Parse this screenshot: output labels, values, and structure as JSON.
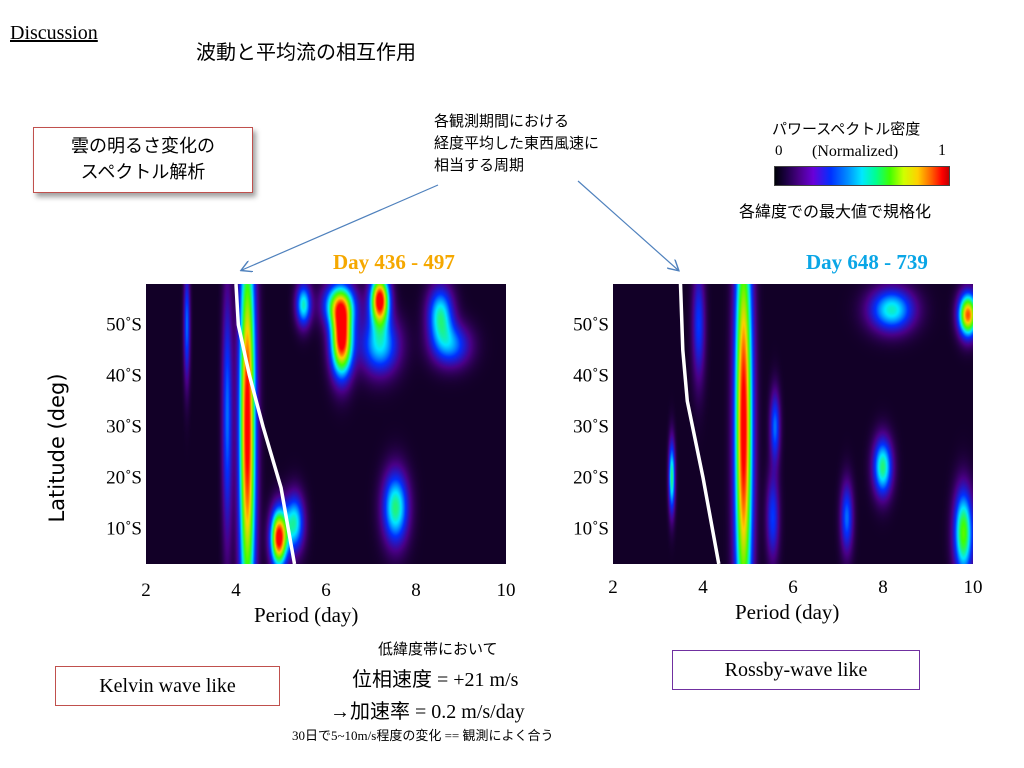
{
  "header": {
    "section": "Discussion",
    "title": "波動と平均流の相互作用"
  },
  "spectral_box": {
    "line1": "雲の明るさ変化の",
    "line2": "スペクトル解析"
  },
  "annotation": {
    "line1": "各観測期間における",
    "line2": "経度平均した東西風速に",
    "line3": "相当する周期"
  },
  "colorbar": {
    "title": "パワースペクトル密度",
    "min_label": "0",
    "max_label": "1",
    "unit_label": "(Normalized)",
    "caption": "各緯度での最大値で規格化",
    "colormap": [
      "#000008",
      "#4a0088",
      "#0030ff",
      "#00e8ff",
      "#40ff00",
      "#ffd000",
      "#ff0000"
    ]
  },
  "colors": {
    "day1": "#f5a800",
    "day2": "#0aa6e6",
    "kelvin_border": "#c0504d",
    "rossby_border": "#7030a0"
  },
  "chart_data": [
    {
      "type": "heatmap",
      "title": "Day 436 - 497",
      "xlabel": "Period (day)",
      "ylabel": "Latitude (deg)",
      "x_ticks": [
        "2",
        "4",
        "6",
        "8",
        "10"
      ],
      "y_ticks": [
        "10˚S",
        "20˚S",
        "30˚S",
        "40˚S",
        "50˚S"
      ],
      "xlim": [
        2,
        10
      ],
      "ylim": [
        3,
        58
      ],
      "blobs": [
        {
          "x": 4.25,
          "y": 30,
          "sx": 0.13,
          "sy": 28,
          "v": 1.0
        },
        {
          "x": 4.95,
          "y": 8,
          "sx": 0.13,
          "sy": 4,
          "v": 1.0
        },
        {
          "x": 5.3,
          "y": 11,
          "sx": 0.15,
          "sy": 4,
          "v": 0.5
        },
        {
          "x": 6.35,
          "y": 47,
          "sx": 0.17,
          "sy": 5,
          "v": 1.0
        },
        {
          "x": 6.3,
          "y": 54,
          "sx": 0.25,
          "sy": 3,
          "v": 0.6
        },
        {
          "x": 7.2,
          "y": 55,
          "sx": 0.15,
          "sy": 3.5,
          "v": 1.0
        },
        {
          "x": 7.2,
          "y": 46,
          "sx": 0.3,
          "sy": 4,
          "v": 0.45
        },
        {
          "x": 8.55,
          "y": 52,
          "sx": 0.2,
          "sy": 4,
          "v": 0.5
        },
        {
          "x": 8.8,
          "y": 46,
          "sx": 0.3,
          "sy": 3,
          "v": 0.35
        },
        {
          "x": 7.55,
          "y": 14,
          "sx": 0.2,
          "sy": 5,
          "v": 0.55
        },
        {
          "x": 5.5,
          "y": 54,
          "sx": 0.12,
          "sy": 3,
          "v": 0.5
        },
        {
          "x": 3.8,
          "y": 32,
          "sx": 0.08,
          "sy": 18,
          "v": 0.35
        },
        {
          "x": 2.9,
          "y": 50,
          "sx": 0.05,
          "sy": 8,
          "v": 0.35
        }
      ],
      "curve": [
        [
          4.0,
          58
        ],
        [
          4.05,
          50
        ],
        [
          4.3,
          40
        ],
        [
          4.6,
          30
        ],
        [
          5.0,
          18
        ],
        [
          5.3,
          3
        ]
      ]
    },
    {
      "type": "heatmap",
      "title": "Day 648 - 739",
      "xlabel": "Period (day)",
      "ylabel": "",
      "x_ticks": [
        "2",
        "4",
        "6",
        "8",
        "10"
      ],
      "y_ticks": [
        "10˚S",
        "20˚S",
        "30˚S",
        "40˚S",
        "50˚S"
      ],
      "xlim": [
        2,
        10
      ],
      "ylim": [
        3,
        58
      ],
      "blobs": [
        {
          "x": 4.9,
          "y": 30,
          "sx": 0.14,
          "sy": 30,
          "v": 1.0
        },
        {
          "x": 5.6,
          "y": 30,
          "sx": 0.08,
          "sy": 5,
          "v": 0.35
        },
        {
          "x": 5.55,
          "y": 12,
          "sx": 0.1,
          "sy": 6,
          "v": 0.3
        },
        {
          "x": 7.2,
          "y": 12,
          "sx": 0.1,
          "sy": 5,
          "v": 0.35
        },
        {
          "x": 8.0,
          "y": 22,
          "sx": 0.15,
          "sy": 4,
          "v": 0.55
        },
        {
          "x": 9.9,
          "y": 52,
          "sx": 0.15,
          "sy": 3,
          "v": 0.9
        },
        {
          "x": 8.2,
          "y": 53,
          "sx": 0.35,
          "sy": 3,
          "v": 0.5
        },
        {
          "x": 9.8,
          "y": 9,
          "sx": 0.15,
          "sy": 6,
          "v": 0.65
        },
        {
          "x": 3.3,
          "y": 20,
          "sx": 0.05,
          "sy": 5,
          "v": 0.55
        },
        {
          "x": 3.9,
          "y": 50,
          "sx": 0.1,
          "sy": 8,
          "v": 0.3
        }
      ],
      "curve": [
        [
          3.5,
          58
        ],
        [
          3.55,
          45
        ],
        [
          3.65,
          35
        ],
        [
          4.0,
          20
        ],
        [
          4.35,
          3
        ]
      ]
    }
  ],
  "conclusion": {
    "low_lat": "低緯度帯において",
    "phase_speed": "位相速度 = +21 m/s",
    "acceleration": "→加速率 = 0.2 m/s/day",
    "small_note": "30日で5~10m/s程度の変化 == 観測によく合う"
  },
  "labels": {
    "kelvin": "Kelvin wave like",
    "rossby": "Rossby-wave like"
  }
}
